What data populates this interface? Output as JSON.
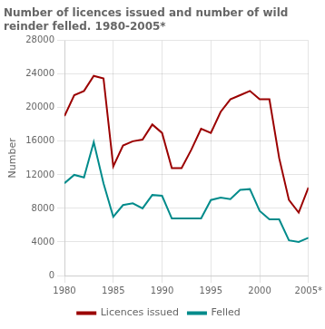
{
  "chart_data": {
    "type": "line",
    "title": "Number of licences issued and number of wild reinder felled. 1980-2005*",
    "y_label": "Number",
    "x": [
      1980,
      1981,
      1982,
      1983,
      1984,
      1985,
      1986,
      1987,
      1988,
      1989,
      1990,
      1991,
      1992,
      1993,
      1994,
      1995,
      1996,
      1997,
      1998,
      1999,
      2000,
      2001,
      2002,
      2003,
      2004,
      2005
    ],
    "series": [
      {
        "name": "Licences issued",
        "color": "#9B0000",
        "values": [
          19000,
          21500,
          22000,
          23800,
          23500,
          13000,
          15500,
          16000,
          16200,
          18000,
          17000,
          12800,
          12800,
          15000,
          17500,
          17000,
          19500,
          21000,
          21500,
          22000,
          21000,
          21000,
          14000,
          9000,
          7500,
          10500
        ]
      },
      {
        "name": "Felled",
        "color": "#008B8B",
        "values": [
          11000,
          12000,
          11700,
          15900,
          11000,
          7000,
          8400,
          8600,
          8000,
          9600,
          9500,
          6800,
          6800,
          6800,
          6800,
          9000,
          9300,
          9100,
          10200,
          10300,
          7700,
          6700,
          6700,
          4200,
          4000,
          4500
        ]
      }
    ],
    "xlim": [
      1980,
      2005
    ],
    "xticks": [
      1980,
      1985,
      1990,
      1995,
      2000,
      {
        "value": 2005,
        "label": "2005*"
      }
    ],
    "ylim": [
      0,
      28000
    ],
    "yticks": [
      0,
      4000,
      8000,
      12000,
      16000,
      20000,
      24000,
      28000
    ],
    "grid": true,
    "legend": "bottom"
  }
}
